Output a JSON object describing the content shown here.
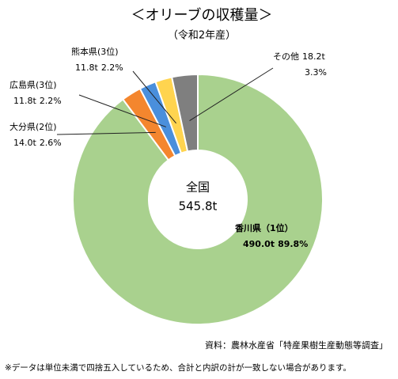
{
  "chart_data": {
    "type": "donut",
    "title": "＜オリーブの収穫量＞",
    "subtitle": "（令和2年産）",
    "center_label": "全国",
    "total": 545.8,
    "total_label": "545.8t",
    "categories": [
      "香川県（1位）",
      "大分県(2位)",
      "広島県(3位)",
      "熊本県(3位)",
      "その他"
    ],
    "values": [
      490.0,
      14.0,
      11.8,
      11.8,
      18.2
    ],
    "value_labels": [
      "490.0t",
      "14.0t",
      "11.8t",
      "11.8t",
      "18.2t"
    ],
    "percents": [
      89.8,
      2.6,
      2.2,
      2.2,
      3.3
    ],
    "percent_labels": [
      "89.8%",
      "2.6%",
      "2.2%",
      "2.2%",
      "3.3%"
    ],
    "colors": [
      "#a9d18e",
      "#f4862e",
      "#4a8fdc",
      "#ffd44f",
      "#7f7f7f"
    ],
    "source": "資料：農林水産省「特産果樹生産動態等調査」",
    "note": "※データは単位未満で四捨五入しているため、合計と内訳の計が一致しない場合があります。"
  }
}
